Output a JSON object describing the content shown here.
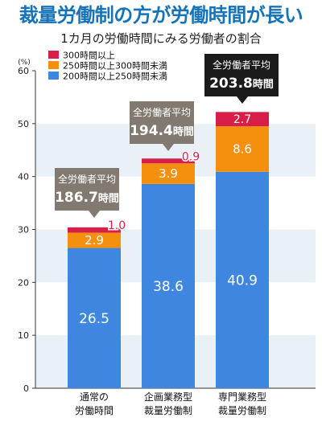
{
  "header": {
    "title": "裁量労働制の方が労働時間が長い",
    "subtitle": "1カ月の労働時間にみる労働者の割合"
  },
  "colors": {
    "title": "#1673b8",
    "seg_blue": "#3f86e0",
    "seg_orange": "#f5900e",
    "seg_red": "#d81d48",
    "band": "#e9f1f7",
    "callout_gray": "#827a71",
    "callout_black": "#1b1b1b"
  },
  "chart_data": {
    "type": "bar",
    "stacked": true,
    "unit_label": "(%)",
    "ylim": [
      0,
      60
    ],
    "yticks": [
      0,
      10,
      20,
      30,
      40,
      50,
      60
    ],
    "categories": [
      [
        "通常の",
        "労働時間"
      ],
      [
        "企画業務型",
        "裁量労働制"
      ],
      [
        "専門業務型",
        "裁量労働制"
      ]
    ],
    "series": [
      {
        "name": "200時間以上250時間未満",
        "color": "#3f86e0",
        "values": [
          26.5,
          38.6,
          40.9
        ],
        "labels": [
          "26.5",
          "38.6",
          "40.9"
        ]
      },
      {
        "name": "250時間以上300時間未満",
        "color": "#f5900e",
        "values": [
          2.9,
          3.9,
          8.6
        ],
        "labels": [
          "2.9",
          "3.9",
          "8.6"
        ]
      },
      {
        "name": "300時間以上",
        "color": "#d81d48",
        "values": [
          1.0,
          0.9,
          2.7
        ],
        "labels": [
          "1.0",
          "0.9",
          "2.7"
        ]
      }
    ],
    "legend_order": [
      "300時間以上",
      "250時間以上300時間未満",
      "200時間以上250時間未満"
    ],
    "callouts": [
      {
        "label": "全労働者平均",
        "value": "186.7",
        "unit": "時間",
        "style": "gray"
      },
      {
        "label": "全労働者平均",
        "value": "194.4",
        "unit": "時間",
        "style": "gray"
      },
      {
        "label": "全労働者平均",
        "value": "203.8",
        "unit": "時間",
        "style": "black"
      }
    ],
    "grid": "alternating bands",
    "legend_position": "top-left"
  }
}
